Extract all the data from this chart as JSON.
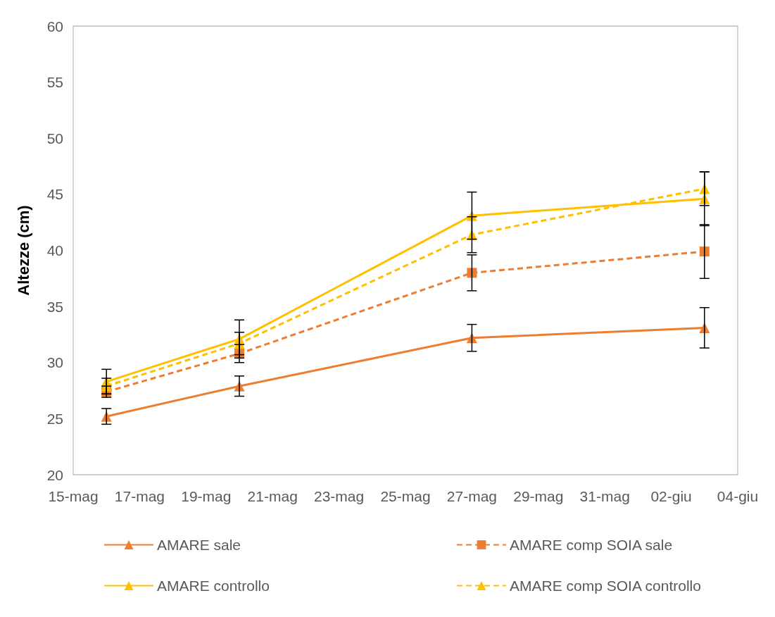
{
  "chart_data": {
    "type": "line",
    "ylabel": "Altezze (cm)",
    "x": [
      "--05-16",
      "--05-20",
      "--05-27",
      "--06-03"
    ],
    "xlim": [
      "--05-15",
      "--06-04"
    ],
    "xticks": [
      {
        "value": "--05-15",
        "label": "15-mag"
      },
      {
        "value": "--05-17",
        "label": "17-mag"
      },
      {
        "value": "--05-19",
        "label": "19-mag"
      },
      {
        "value": "--05-21",
        "label": "21-mag"
      },
      {
        "value": "--05-23",
        "label": "23-mag"
      },
      {
        "value": "--05-25",
        "label": "25-mag"
      },
      {
        "value": "--05-27",
        "label": "27-mag"
      },
      {
        "value": "--05-29",
        "label": "29-mag"
      },
      {
        "value": "--05-31",
        "label": "31-mag"
      },
      {
        "value": "--06-02",
        "label": "02-giu"
      },
      {
        "value": "--06-04",
        "label": "04-giu"
      }
    ],
    "ylim": [
      20,
      60
    ],
    "yticks": [
      20,
      25,
      30,
      35,
      40,
      45,
      50,
      55,
      60
    ],
    "series": [
      {
        "name": "AMARE sale",
        "color": "#ed7d31",
        "marker": "triangle",
        "line_style": "solid",
        "values": [
          25.2,
          27.9,
          32.2,
          33.1
        ],
        "errors": [
          0.7,
          0.9,
          1.2,
          1.8
        ]
      },
      {
        "name": "AMARE comp SOIA sale",
        "color": "#ed7d31",
        "marker": "square",
        "line_style": "dashed",
        "values": [
          27.4,
          30.8,
          38.0,
          39.9
        ],
        "errors": [
          0.5,
          0.8,
          1.6,
          2.4
        ]
      },
      {
        "name": "AMARE controllo",
        "color": "#ffc000",
        "marker": "triangle",
        "line_style": "solid",
        "values": [
          28.3,
          32.1,
          43.1,
          44.6
        ],
        "errors": [
          1.1,
          1.7,
          2.1,
          2.4
        ]
      },
      {
        "name": "AMARE comp SOIA controllo",
        "color": "#ffc000",
        "marker": "triangle",
        "line_style": "dashed",
        "values": [
          27.9,
          31.7,
          41.4,
          45.5
        ],
        "errors": [
          0.7,
          1.0,
          1.6,
          1.5
        ]
      }
    ],
    "grid": false,
    "legend": "bottom"
  }
}
